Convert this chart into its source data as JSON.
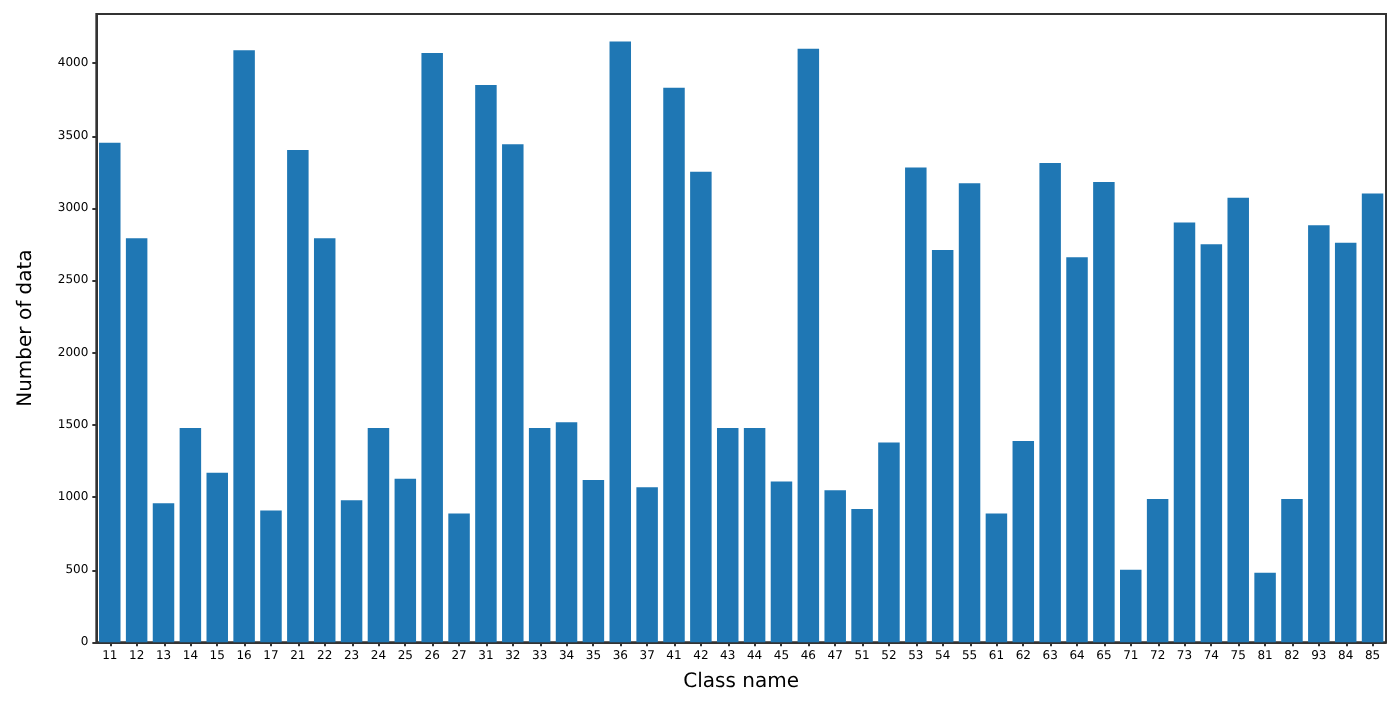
{
  "chart_data": {
    "type": "bar",
    "xlabel": "Class name",
    "ylabel": "Number of data",
    "categories": [
      "11",
      "12",
      "13",
      "14",
      "15",
      "16",
      "17",
      "21",
      "22",
      "23",
      "24",
      "25",
      "26",
      "27",
      "31",
      "32",
      "33",
      "34",
      "35",
      "36",
      "37",
      "41",
      "42",
      "43",
      "44",
      "45",
      "46",
      "47",
      "51",
      "52",
      "53",
      "54",
      "55",
      "61",
      "62",
      "63",
      "64",
      "65",
      "71",
      "72",
      "73",
      "74",
      "75",
      "81",
      "82",
      "93",
      "84",
      "85"
    ],
    "values": [
      3450,
      2790,
      960,
      1480,
      1170,
      4090,
      910,
      3400,
      2790,
      980,
      1480,
      1130,
      4070,
      890,
      3850,
      3440,
      1480,
      1520,
      1120,
      4150,
      1070,
      3830,
      3250,
      1480,
      1480,
      1110,
      4100,
      1050,
      920,
      1380,
      3280,
      2710,
      3170,
      890,
      1390,
      3310,
      2660,
      3180,
      500,
      990,
      2900,
      2750,
      3070,
      480,
      990,
      2880,
      2760,
      3100
    ],
    "color": "#1f77b4",
    "ylim": [
      0,
      4340
    ],
    "yticks": [
      0,
      500,
      1000,
      1500,
      2000,
      2500,
      3000,
      3500,
      4000
    ],
    "grid": false
  }
}
